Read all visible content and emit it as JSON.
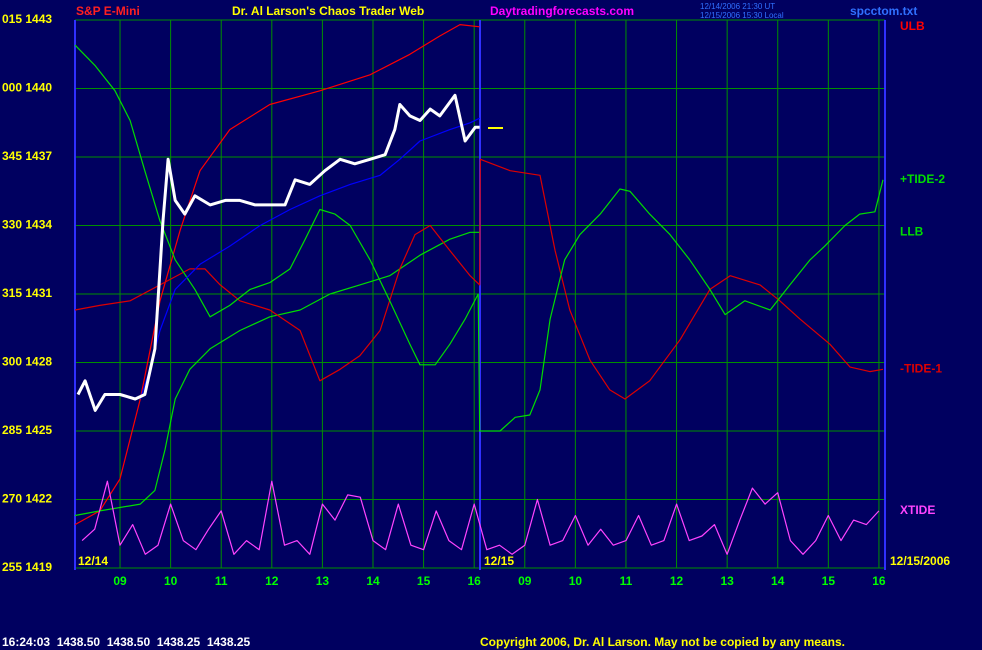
{
  "chart_data": {
    "type": "line",
    "title": "Dr. Al Larson's Chaos Trader Web",
    "symbol": "S&P E-Mini",
    "site": "Daytradingforecasts.com",
    "timestamps": [
      "12/14/2006 21:30 UT",
      "12/15/2006 15:30 Local"
    ],
    "file": "spcctom.txt",
    "date_labels": [
      "12/14",
      "12/15",
      "12/15/2006"
    ],
    "status": "16:24:03  1438.50  1438.50  1438.25  1438.25",
    "copyright": "Copyright 2006, Dr. Al Larson. May not be copied by any means.",
    "grid": true,
    "xlim": [
      8.11,
      24.12
    ],
    "ylim": [
      1419,
      1443
    ],
    "xticks": [
      {
        "value": 9,
        "label": "09"
      },
      10,
      11,
      12,
      13,
      14,
      15,
      16,
      {
        "value": 17,
        "label": "09"
      },
      {
        "value": 18,
        "label": "10"
      },
      {
        "value": 19,
        "label": "11"
      },
      {
        "value": 20,
        "label": "12"
      },
      {
        "value": 21,
        "label": "13"
      },
      {
        "value": 22,
        "label": "14"
      },
      {
        "value": 23,
        "label": "15"
      },
      {
        "value": 24,
        "label": "16"
      }
    ],
    "yticks": [
      {
        "value": 1443,
        "label": "015 1443"
      },
      {
        "value": 1440,
        "label": "000 1440"
      },
      {
        "value": 1437,
        "label": "345 1437"
      },
      {
        "value": 1434,
        "label": "330 1434"
      },
      {
        "value": 1431,
        "label": "315 1431"
      },
      {
        "value": 1428,
        "label": "300 1428"
      },
      {
        "value": 1425,
        "label": "285 1425"
      },
      {
        "value": 1422,
        "label": "270 1422"
      },
      {
        "value": 1419,
        "label": "255 1419"
      }
    ],
    "series": [
      {
        "color": "#ff0000",
        "name": "ULB",
        "x": [
          8.11,
          8.6,
          9,
          9.4,
          9.79,
          10.19,
          10.58,
          11.17,
          11.96,
          12.95,
          13.94,
          14.73,
          15.32,
          15.72,
          16.11
        ],
        "values": [
          1420.9,
          1421.5,
          1422.9,
          1426.4,
          1430.7,
          1433.8,
          1436.4,
          1438.2,
          1439.3,
          1439.9,
          1440.6,
          1441.5,
          1442.3,
          1442.8,
          1442.7
        ]
      },
      {
        "color": "#00dd00",
        "name": "LLB",
        "x": [
          8.11,
          8.6,
          9.4,
          9.69,
          9.89,
          10.09,
          10.38,
          10.78,
          11.37,
          11.96,
          12.56,
          13.15,
          13.74,
          14.33,
          14.93,
          15.52,
          15.92,
          16.11
        ],
        "values": [
          1421.3,
          1421.5,
          1421.8,
          1422.4,
          1424.2,
          1426.4,
          1427.7,
          1428.6,
          1429.4,
          1430.0,
          1430.3,
          1431.0,
          1431.4,
          1431.8,
          1432.7,
          1433.4,
          1433.7,
          1433.7
        ]
      },
      {
        "color": "#dd0000",
        "name": "-TIDE-1",
        "x": [
          8.11,
          8.6,
          9.2,
          9.79,
          10.38,
          10.68,
          10.98,
          11.37,
          11.96,
          12.56,
          12.95,
          13.35,
          13.74,
          14.14,
          14.53,
          14.83,
          15.13,
          15.52,
          15.92,
          16.11,
          16.12,
          16.71,
          17.3,
          17.6,
          17.89,
          18.29,
          18.68,
          18.98,
          19.47,
          20.07,
          20.66,
          21.06,
          21.65,
          22.04,
          22.44,
          23.03,
          23.43,
          23.82,
          24.08
        ],
        "values": [
          1430.3,
          1430.5,
          1430.7,
          1431.4,
          1432.1,
          1432.1,
          1431.4,
          1430.7,
          1430.3,
          1429.4,
          1427.2,
          1427.7,
          1428.3,
          1429.4,
          1432.1,
          1433.6,
          1434.0,
          1432.9,
          1431.8,
          1431.4,
          1436.9,
          1436.4,
          1436.2,
          1432.9,
          1430.3,
          1428.1,
          1426.8,
          1426.4,
          1427.2,
          1429.0,
          1431.2,
          1431.8,
          1431.4,
          1430.7,
          1429.9,
          1428.8,
          1427.8,
          1427.6,
          1427.7
        ]
      },
      {
        "color": "#00dd00",
        "name": "+TIDE-2",
        "x": [
          8.11,
          8.51,
          8.9,
          9.2,
          9.49,
          9.79,
          10.09,
          10.48,
          10.78,
          11.17,
          11.57,
          11.96,
          12.36,
          12.66,
          12.95,
          13.25,
          13.55,
          13.94,
          14.33,
          14.73,
          14.93,
          15.23,
          15.52,
          15.82,
          16.08,
          16.11,
          16.51,
          16.81,
          17.1,
          17.3,
          17.5,
          17.79,
          18.09,
          18.49,
          18.88,
          19.08,
          19.47,
          19.87,
          20.26,
          20.66,
          20.96,
          21.35,
          21.85,
          22.24,
          22.64,
          22.93,
          23.33,
          23.62,
          23.92,
          24.08
        ],
        "values": [
          1441.9,
          1441.0,
          1439.9,
          1438.6,
          1436.4,
          1434.2,
          1432.5,
          1431.2,
          1430.0,
          1430.5,
          1431.2,
          1431.5,
          1432.1,
          1433.4,
          1434.7,
          1434.5,
          1434.0,
          1432.5,
          1430.7,
          1428.8,
          1427.9,
          1427.9,
          1428.8,
          1429.9,
          1431.0,
          1425.0,
          1425.0,
          1425.6,
          1425.7,
          1426.8,
          1429.9,
          1432.5,
          1433.6,
          1434.5,
          1435.6,
          1435.5,
          1434.5,
          1433.6,
          1432.5,
          1431.2,
          1430.1,
          1430.7,
          1430.3,
          1431.4,
          1432.5,
          1433.1,
          1434.0,
          1434.5,
          1434.6,
          1436.0
        ]
      },
      {
        "color": "#ff44ff",
        "name": "XTIDE",
        "x": [
          8.25,
          8.5,
          8.75,
          9,
          9.25,
          9.5,
          9.75,
          10,
          10.25,
          10.5,
          10.75,
          11,
          11.25,
          11.5,
          11.75,
          12,
          12.25,
          12.5,
          12.75,
          13,
          13.25,
          13.5,
          13.75,
          14,
          14.25,
          14.5,
          14.75,
          15,
          15.25,
          15.5,
          15.75,
          16,
          16.25,
          16.5,
          16.75,
          17,
          17.25,
          17.5,
          17.75,
          18,
          18.25,
          18.5,
          18.75,
          19,
          19.25,
          19.5,
          19.75,
          20,
          20.25,
          20.5,
          20.75,
          21,
          21.25,
          21.5,
          21.75,
          22,
          22.25,
          22.5,
          22.75,
          23,
          23.25,
          23.5,
          23.75,
          24
        ],
        "values": [
          1420.2,
          1420.7,
          1422.8,
          1420.0,
          1420.9,
          1419.6,
          1420.0,
          1421.8,
          1420.2,
          1419.8,
          1420.7,
          1421.5,
          1419.6,
          1420.2,
          1419.8,
          1422.8,
          1420.0,
          1420.2,
          1419.6,
          1421.8,
          1421.1,
          1422.2,
          1422.1,
          1420.2,
          1419.8,
          1421.8,
          1420.0,
          1419.8,
          1421.5,
          1420.2,
          1419.8,
          1421.8,
          1419.8,
          1420.0,
          1419.6,
          1420.0,
          1422.0,
          1420.0,
          1420.2,
          1421.3,
          1420.0,
          1420.7,
          1420.0,
          1420.2,
          1421.3,
          1420.0,
          1420.2,
          1421.8,
          1420.2,
          1420.4,
          1420.9,
          1419.6,
          1421.1,
          1422.5,
          1421.8,
          1422.3,
          1420.2,
          1419.6,
          1420.2,
          1421.3,
          1420.2,
          1421.1,
          1420.9,
          1421.5
        ]
      },
      {
        "color": "#0000ff",
        "x": [
          9.4,
          9.59,
          9.79,
          10.09,
          10.58,
          11.17,
          11.77,
          12.36,
          12.95,
          13.55,
          14.14,
          14.53,
          14.93,
          15.52,
          15.92,
          16.11
        ],
        "values": [
          1426.4,
          1427.7,
          1429.4,
          1431.2,
          1432.3,
          1433.1,
          1434.0,
          1434.7,
          1435.3,
          1435.8,
          1436.2,
          1436.9,
          1437.7,
          1438.2,
          1438.5,
          1438.7
        ]
      },
      {
        "color": "#ffffff",
        "x": [
          8.17,
          8.31,
          8.51,
          8.7,
          9.0,
          9.3,
          9.49,
          9.69,
          9.79,
          9.85,
          9.95,
          10.09,
          10.28,
          10.48,
          10.78,
          11.08,
          11.37,
          11.67,
          11.96,
          12.26,
          12.46,
          12.75,
          13.05,
          13.35,
          13.64,
          13.94,
          14.24,
          14.43,
          14.53,
          14.73,
          14.93,
          15.13,
          15.32,
          15.62,
          15.82,
          16.02,
          16.11
        ],
        "values": [
          1426.6,
          1427.2,
          1425.9,
          1426.6,
          1426.6,
          1426.4,
          1426.6,
          1428.6,
          1432.1,
          1434.2,
          1436.9,
          1435.1,
          1434.5,
          1435.3,
          1434.9,
          1435.1,
          1435.1,
          1434.9,
          1434.9,
          1434.9,
          1436.0,
          1435.8,
          1436.4,
          1436.9,
          1436.7,
          1436.9,
          1437.1,
          1438.2,
          1439.3,
          1438.8,
          1438.6,
          1439.1,
          1438.8,
          1439.7,
          1437.7,
          1438.3,
          1438.3
        ]
      }
    ]
  }
}
